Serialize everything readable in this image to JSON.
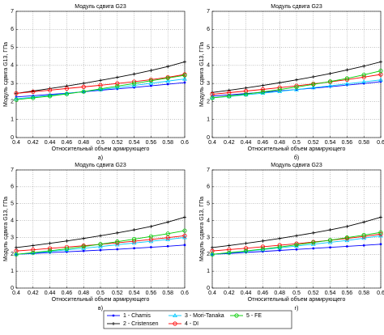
{
  "chart_data": [
    {
      "type": "line",
      "title": "Модуль сдвига G23",
      "xlabel": "Относительный объем армирующего",
      "ylabel": "Модуль сдвига G13, ГПа",
      "caption": "а)",
      "x": [
        0.4,
        0.42,
        0.44,
        0.46,
        0.48,
        0.5,
        0.52,
        0.54,
        0.56,
        0.58,
        0.6
      ],
      "xlim": [
        0.4,
        0.6
      ],
      "ylim": [
        0,
        7
      ],
      "xticks": [
        0.4,
        0.42,
        0.44,
        0.46,
        0.48,
        0.5,
        0.52,
        0.54,
        0.56,
        0.58,
        0.6
      ],
      "yticks": [
        0,
        1,
        2,
        3,
        4,
        5,
        6,
        7
      ],
      "grid": true,
      "series": [
        {
          "name": "1 - Chamis",
          "color": "#0000ff",
          "values": [
            2.25,
            2.32,
            2.39,
            2.46,
            2.54,
            2.62,
            2.7,
            2.78,
            2.87,
            2.96,
            3.05
          ]
        },
        {
          "name": "2 - Cristensen",
          "color": "#000000",
          "values": [
            2.45,
            2.58,
            2.72,
            2.86,
            3.01,
            3.17,
            3.34,
            3.52,
            3.72,
            3.94,
            4.2
          ]
        },
        {
          "name": "3 - Mori-Tanaka",
          "color": "#00c8ff",
          "values": [
            2.15,
            2.24,
            2.34,
            2.44,
            2.55,
            2.66,
            2.77,
            2.89,
            3.01,
            3.13,
            3.25
          ]
        },
        {
          "name": "4 - DI",
          "color": "#ff0000",
          "values": [
            2.45,
            2.54,
            2.63,
            2.72,
            2.81,
            2.9,
            3.0,
            3.1,
            3.21,
            3.34,
            3.5
          ]
        },
        {
          "name": "5 - FE",
          "color": "#00cc00",
          "values": [
            2.1,
            2.2,
            2.3,
            2.42,
            2.55,
            2.7,
            2.85,
            3.0,
            3.15,
            3.3,
            3.45
          ]
        }
      ]
    },
    {
      "type": "line",
      "title": "Модуль сдвига G23",
      "xlabel": "Относительный объем армирующего",
      "ylabel": "Модуль сдвига G13, ГПа",
      "caption": "б)",
      "x": [
        0.4,
        0.42,
        0.44,
        0.46,
        0.48,
        0.5,
        0.52,
        0.54,
        0.56,
        0.58,
        0.6
      ],
      "xlim": [
        0.4,
        0.6
      ],
      "ylim": [
        0,
        7
      ],
      "xticks": [
        0.4,
        0.42,
        0.44,
        0.46,
        0.48,
        0.5,
        0.52,
        0.54,
        0.56,
        0.58,
        0.6
      ],
      "yticks": [
        0,
        1,
        2,
        3,
        4,
        5,
        6,
        7
      ],
      "grid": true,
      "series": [
        {
          "color": "#0000ff",
          "values": [
            2.3,
            2.37,
            2.44,
            2.51,
            2.59,
            2.66,
            2.74,
            2.82,
            2.91,
            3.0,
            3.1
          ]
        },
        {
          "color": "#000000",
          "values": [
            2.5,
            2.62,
            2.75,
            2.89,
            3.04,
            3.2,
            3.37,
            3.55,
            3.75,
            3.96,
            4.2
          ]
        },
        {
          "color": "#00c8ff",
          "values": [
            2.2,
            2.28,
            2.37,
            2.46,
            2.56,
            2.66,
            2.77,
            2.87,
            2.98,
            3.09,
            3.2
          ]
        },
        {
          "color": "#ff0000",
          "values": [
            2.4,
            2.49,
            2.58,
            2.67,
            2.77,
            2.87,
            2.98,
            3.09,
            3.21,
            3.35,
            3.5
          ]
        },
        {
          "color": "#00cc00",
          "values": [
            2.2,
            2.3,
            2.41,
            2.53,
            2.66,
            2.8,
            2.95,
            3.11,
            3.28,
            3.48,
            3.7
          ]
        }
      ]
    },
    {
      "type": "line",
      "title": "Модуль сдвига G23",
      "xlabel": "Относительный объем армирующего",
      "ylabel": "Модуль сдвига G13, ГПа",
      "caption": "в)",
      "x": [
        0.4,
        0.42,
        0.44,
        0.46,
        0.48,
        0.5,
        0.52,
        0.54,
        0.56,
        0.58,
        0.6
      ],
      "xlim": [
        0.4,
        0.6
      ],
      "ylim": [
        0,
        7
      ],
      "xticks": [
        0.4,
        0.42,
        0.44,
        0.46,
        0.48,
        0.5,
        0.52,
        0.54,
        0.56,
        0.58,
        0.6
      ],
      "yticks": [
        0,
        1,
        2,
        3,
        4,
        5,
        6,
        7
      ],
      "grid": true,
      "series": [
        {
          "color": "#0000ff",
          "values": [
            2.0,
            2.05,
            2.1,
            2.15,
            2.2,
            2.25,
            2.3,
            2.36,
            2.42,
            2.48,
            2.55
          ]
        },
        {
          "color": "#000000",
          "values": [
            2.4,
            2.52,
            2.65,
            2.79,
            2.94,
            3.1,
            3.27,
            3.45,
            3.65,
            3.91,
            4.2
          ]
        },
        {
          "color": "#00c8ff",
          "values": [
            2.0,
            2.08,
            2.17,
            2.26,
            2.36,
            2.46,
            2.57,
            2.67,
            2.77,
            2.88,
            3.0
          ]
        },
        {
          "color": "#ff0000",
          "values": [
            2.2,
            2.27,
            2.35,
            2.43,
            2.51,
            2.59,
            2.68,
            2.78,
            2.88,
            2.99,
            3.1
          ]
        },
        {
          "color": "#00cc00",
          "values": [
            2.0,
            2.1,
            2.21,
            2.33,
            2.46,
            2.6,
            2.75,
            2.9,
            3.06,
            3.22,
            3.4
          ]
        }
      ]
    },
    {
      "type": "line",
      "title": "Модуль сдвига G23",
      "xlabel": "Относительный объем армирующего",
      "ylabel": "Модуль сдвига G13, ГПа",
      "caption": "г)",
      "x": [
        0.4,
        0.42,
        0.44,
        0.46,
        0.48,
        0.5,
        0.52,
        0.54,
        0.56,
        0.58,
        0.6
      ],
      "xlim": [
        0.4,
        0.6
      ],
      "ylim": [
        0,
        7
      ],
      "xticks": [
        0.4,
        0.42,
        0.44,
        0.46,
        0.48,
        0.5,
        0.52,
        0.54,
        0.56,
        0.58,
        0.6
      ],
      "yticks": [
        0,
        1,
        2,
        3,
        4,
        5,
        6,
        7
      ],
      "grid": true,
      "series": [
        {
          "color": "#0000ff",
          "values": [
            2.0,
            2.05,
            2.11,
            2.17,
            2.23,
            2.29,
            2.35,
            2.41,
            2.47,
            2.53,
            2.6
          ]
        },
        {
          "color": "#000000",
          "values": [
            2.4,
            2.52,
            2.65,
            2.79,
            2.94,
            3.1,
            3.27,
            3.45,
            3.65,
            3.91,
            4.2
          ]
        },
        {
          "color": "#00c8ff",
          "values": [
            2.0,
            2.09,
            2.18,
            2.28,
            2.38,
            2.49,
            2.6,
            2.71,
            2.82,
            2.96,
            3.1
          ]
        },
        {
          "color": "#ff0000",
          "values": [
            2.2,
            2.28,
            2.36,
            2.45,
            2.54,
            2.63,
            2.73,
            2.83,
            2.94,
            3.06,
            3.2
          ]
        },
        {
          "color": "#00cc00",
          "values": [
            2.0,
            2.1,
            2.2,
            2.31,
            2.43,
            2.56,
            2.7,
            2.84,
            2.99,
            3.14,
            3.3
          ]
        }
      ]
    }
  ]
}
